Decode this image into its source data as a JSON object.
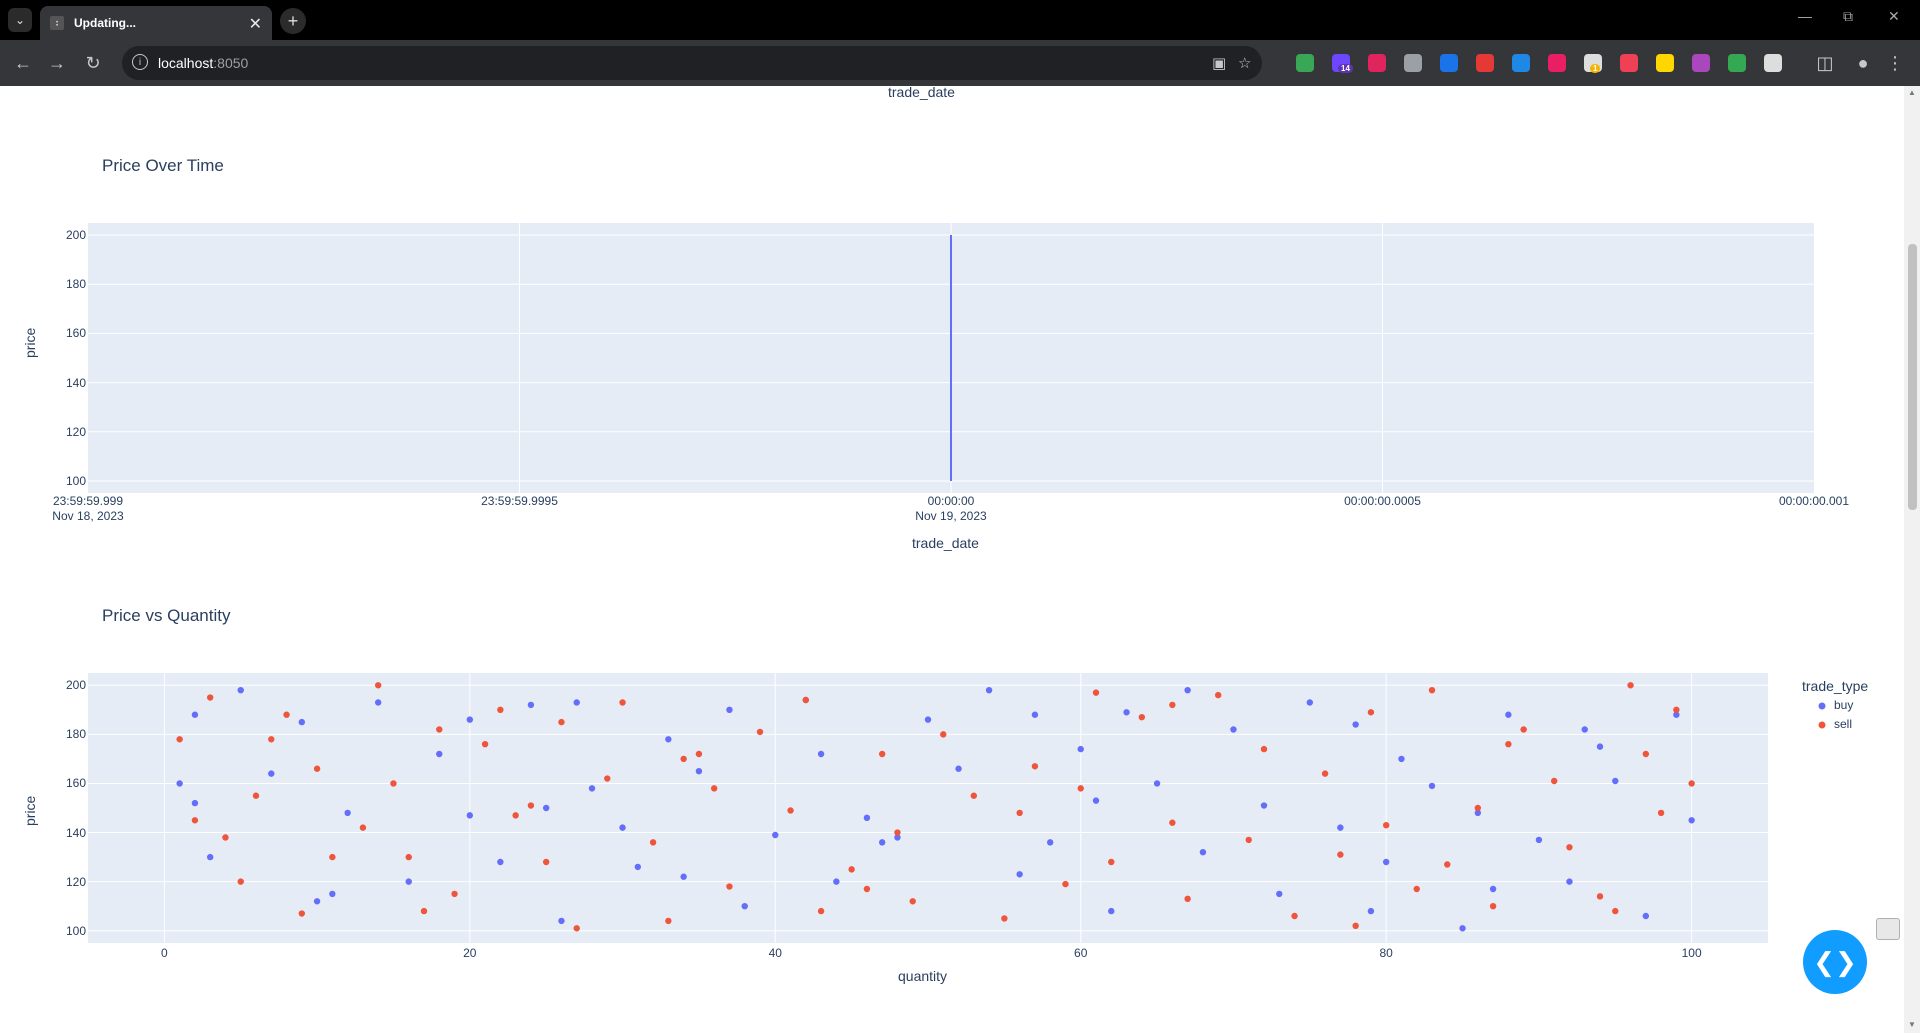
{
  "browser": {
    "tab_title": "Updating...",
    "url_host": "localhost",
    "url_port": ":8050",
    "extensions": [
      {
        "name": "globe-extension-icon",
        "color": "#3aa757"
      },
      {
        "name": "purple-extension-icon",
        "color": "#6c47ff",
        "badge": "14"
      },
      {
        "name": "red-eye-extension-icon",
        "color": "#e0245e"
      },
      {
        "name": "camera-extension-icon",
        "color": "#9aa0a6"
      },
      {
        "name": "shield-extension-icon",
        "color": "#1a73e8"
      },
      {
        "name": "eraser-extension-icon",
        "color": "#e53935"
      },
      {
        "name": "window-extension-icon",
        "color": "#1e88e5"
      },
      {
        "name": "play-extension-icon",
        "color": "#e91e63"
      },
      {
        "name": "gear-extension-icon",
        "color": "#dddddd",
        "badge": "1"
      },
      {
        "name": "pocket-extension-icon",
        "color": "#ef4056"
      },
      {
        "name": "moon-extension-icon",
        "color": "#ffd600"
      },
      {
        "name": "color-picker-extension-icon",
        "color": "#ab47bc"
      },
      {
        "name": "drive-extension-icon",
        "color": "#34a853"
      },
      {
        "name": "puzzle-extension-icon",
        "color": "#dddddd"
      }
    ]
  },
  "top_axis_label": "trade_date",
  "charts": {
    "line": {
      "title": "Price Over Time",
      "xlabel": "trade_date",
      "ylabel": "price",
      "yticks": [
        "200",
        "180",
        "160",
        "140",
        "120",
        "100"
      ],
      "xticks": [
        {
          "time": "23:59:59.999",
          "date": "Nov 18, 2023"
        },
        {
          "time": "23:59:59.9995",
          "date": ""
        },
        {
          "time": "00:00:00",
          "date": "Nov 19, 2023"
        },
        {
          "time": "00:00:00.0005",
          "date": ""
        },
        {
          "time": "00:00:00.001",
          "date": ""
        }
      ],
      "line_color": "#636efa"
    },
    "scatter": {
      "title": "Price vs Quantity",
      "xlabel": "quantity",
      "ylabel": "price",
      "yticks": [
        "200",
        "180",
        "160",
        "140",
        "120",
        "100"
      ],
      "xticks": [
        "0",
        "20",
        "40",
        "60",
        "80",
        "100"
      ],
      "legend_title": "trade_type",
      "legend": [
        {
          "label": "buy",
          "color": "#636efa"
        },
        {
          "label": "sell",
          "color": "#ef553b"
        }
      ]
    }
  },
  "chart_data": [
    {
      "type": "line",
      "title": "Price Over Time",
      "xlabel": "trade_date",
      "ylabel": "price",
      "x_range": [
        "2023-11-18 23:59:59.999",
        "2023-11-19 00:00:00.001"
      ],
      "ylim": [
        100,
        200
      ],
      "series": [
        {
          "x": [
            "2023-11-19 00:00:00",
            "2023-11-19 00:00:00"
          ],
          "y": [
            100,
            200
          ]
        }
      ],
      "grid": true
    },
    {
      "type": "scatter",
      "title": "Price vs Quantity",
      "xlabel": "quantity",
      "ylabel": "price",
      "xlim": [
        -5,
        105
      ],
      "ylim": [
        95,
        205
      ],
      "legend_position": "right",
      "series": [
        {
          "name": "buy",
          "x": [
            1,
            2,
            2,
            3,
            5,
            7,
            9,
            10,
            12,
            14,
            16,
            18,
            20,
            20,
            22,
            24,
            25,
            26,
            28,
            30,
            31,
            33,
            35,
            37,
            38,
            40,
            42,
            43,
            44,
            46,
            48,
            50,
            52,
            54,
            56,
            58,
            60,
            62,
            63,
            65,
            67,
            68,
            70,
            72,
            73,
            75,
            77,
            78,
            80,
            81,
            83,
            85,
            86,
            88,
            90,
            92,
            93,
            95,
            97,
            99,
            100,
            11,
            27,
            47,
            61,
            87,
            94,
            34,
            57,
            79
          ],
          "y": [
            160,
            152,
            188,
            130,
            198,
            164,
            185,
            112,
            148,
            193,
            120,
            172,
            147,
            186,
            128,
            192,
            150,
            104,
            158,
            142,
            126,
            178,
            165,
            190,
            110,
            139,
            194,
            172,
            120,
            146,
            138,
            186,
            166,
            198,
            123,
            136,
            174,
            108,
            189,
            160,
            198,
            132,
            182,
            151,
            115,
            193,
            142,
            184,
            128,
            170,
            159,
            101,
            148,
            188,
            137,
            120,
            182,
            161,
            106,
            188,
            145,
            115,
            193,
            136,
            153,
            117,
            175,
            122,
            188,
            108
          ]
        },
        {
          "name": "sell",
          "x": [
            1,
            2,
            3,
            4,
            5,
            6,
            8,
            9,
            10,
            11,
            13,
            14,
            15,
            17,
            18,
            19,
            21,
            22,
            23,
            25,
            26,
            27,
            29,
            30,
            32,
            33,
            34,
            36,
            37,
            39,
            41,
            42,
            43,
            45,
            47,
            48,
            49,
            51,
            53,
            55,
            57,
            59,
            60,
            61,
            62,
            64,
            66,
            67,
            69,
            71,
            72,
            74,
            76,
            77,
            79,
            80,
            82,
            83,
            84,
            86,
            87,
            89,
            91,
            92,
            94,
            96,
            97,
            98,
            99,
            100,
            7,
            16,
            24,
            35,
            46,
            56,
            66,
            78,
            88,
            95
          ],
          "y": [
            178,
            145,
            195,
            138,
            120,
            155,
            188,
            107,
            166,
            130,
            142,
            200,
            160,
            108,
            182,
            115,
            176,
            190,
            147,
            128,
            185,
            101,
            162,
            193,
            136,
            104,
            170,
            158,
            118,
            181,
            149,
            194,
            108,
            125,
            172,
            140,
            112,
            180,
            155,
            105,
            167,
            119,
            158,
            197,
            128,
            187,
            144,
            113,
            196,
            137,
            174,
            106,
            164,
            131,
            189,
            143,
            117,
            198,
            127,
            150,
            110,
            182,
            161,
            134,
            114,
            200,
            172,
            148,
            190,
            160,
            178,
            130,
            151,
            172,
            117,
            148,
            192,
            102,
            176,
            108
          ]
        }
      ],
      "grid": true
    }
  ]
}
